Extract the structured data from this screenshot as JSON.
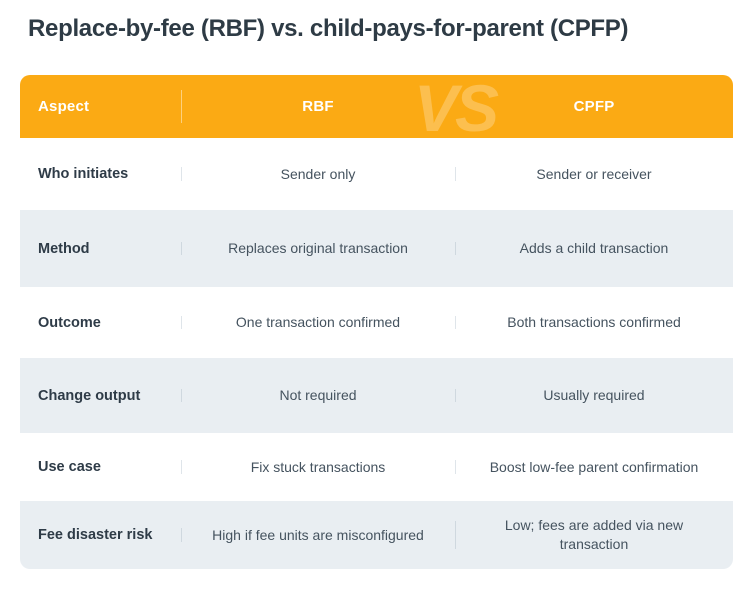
{
  "page": {
    "title": "Replace-by-fee (RBF) vs. child-pays-for-parent (CPFP)"
  },
  "table": {
    "header": {
      "aspect": "Aspect",
      "rbf": "RBF",
      "cpfp": "CPFP",
      "vs_watermark": "VS"
    },
    "rows": [
      {
        "aspect": "Who initiates",
        "rbf": "Sender only",
        "cpfp": "Sender or receiver"
      },
      {
        "aspect": "Method",
        "rbf": "Replaces original transaction",
        "cpfp": "Adds a child transaction"
      },
      {
        "aspect": "Outcome",
        "rbf": "One transaction confirmed",
        "cpfp": "Both transactions confirmed"
      },
      {
        "aspect": "Change output",
        "rbf": "Not required",
        "cpfp": "Usually required"
      },
      {
        "aspect": "Use case",
        "rbf": "Fix stuck transactions",
        "cpfp": "Boost low-fee parent confirmation"
      },
      {
        "aspect": "Fee disaster risk",
        "rbf": "High if fee units are misconfigured",
        "cpfp": "Low; fees are added via new transaction"
      }
    ],
    "colors": {
      "header_bg": "#FBAA14",
      "alt_row_bg": "#E9EEF2",
      "header_text": "#FFFFFF",
      "title_text": "#2E3B45",
      "label_text": "#2E3B47",
      "body_text": "#45535F",
      "divider_light": "#DFE5EA",
      "divider_dark": "#CFD8DF"
    }
  }
}
